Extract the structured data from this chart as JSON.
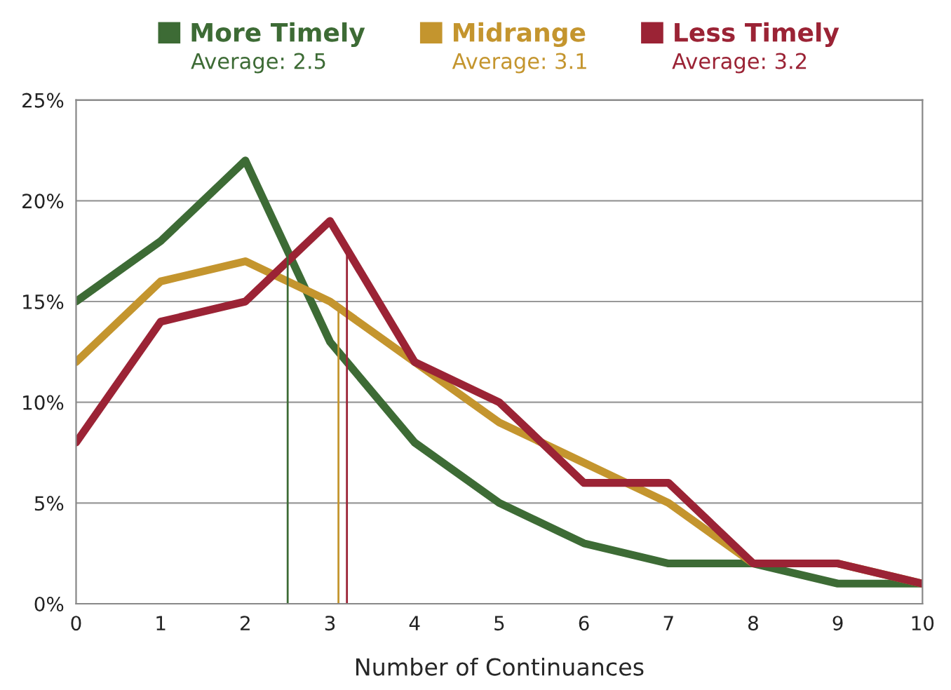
{
  "chart_data": {
    "type": "line",
    "xlabel": "Number of Continuances",
    "x": [
      0,
      1,
      2,
      3,
      4,
      5,
      6,
      7,
      8,
      9,
      10
    ],
    "series": [
      {
        "name": "More Timely",
        "color": "#3d6b35",
        "values": [
          15,
          18,
          22,
          13,
          8,
          5,
          3,
          2,
          2,
          1,
          1
        ]
      },
      {
        "name": "Midrange",
        "color": "#c4952e",
        "values": [
          12,
          16,
          17,
          15,
          12,
          9,
          7,
          5,
          2,
          2,
          1
        ]
      },
      {
        "name": "Less Timely",
        "color": "#9b2335",
        "values": [
          8,
          14,
          15,
          19,
          12,
          10,
          6,
          6,
          2,
          2,
          1
        ]
      }
    ],
    "ref_lines": [
      {
        "axis": "x",
        "value": 2.5,
        "label": "Average: 2.5",
        "color": "#3d6b35"
      },
      {
        "axis": "x",
        "value": 3.1,
        "label": "Average: 3.1",
        "color": "#c4952e"
      },
      {
        "axis": "x",
        "value": 3.2,
        "label": "Average: 3.2",
        "color": "#9b2335"
      }
    ],
    "xlim": [
      0,
      10
    ],
    "xticks": [
      0,
      1,
      2,
      3,
      4,
      5,
      6,
      7,
      8,
      9,
      10
    ],
    "ylim": [
      0,
      25
    ],
    "yticks": [
      {
        "value": 0,
        "label": "0%"
      },
      {
        "value": 5,
        "label": "5%"
      },
      {
        "value": 10,
        "label": "10%"
      },
      {
        "value": 15,
        "label": "15%"
      },
      {
        "value": 20,
        "label": "20%"
      },
      {
        "value": 25,
        "label": "25%"
      }
    ],
    "grid": "y",
    "legend": "top",
    "marker": "none",
    "line_style": "solid"
  }
}
